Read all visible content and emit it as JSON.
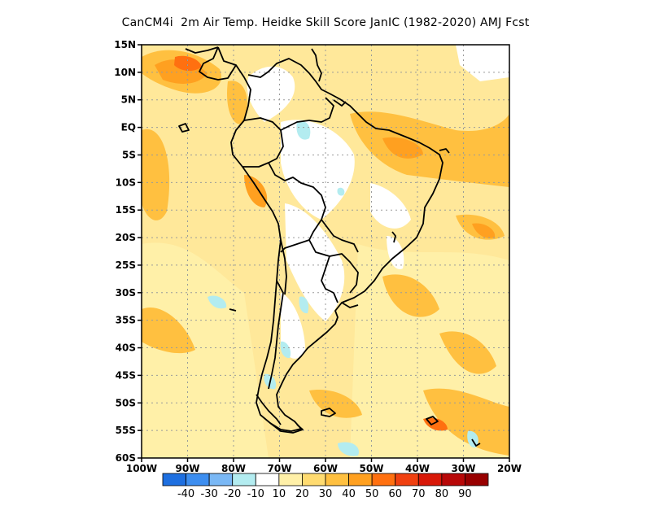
{
  "title": "CanCM4i  2m Air Temp. Heidke Skill Score JanIC (1982-2020) AMJ Fcst",
  "map": {
    "lon_range": [
      -100,
      -20
    ],
    "lat_range": [
      -60,
      15
    ],
    "lat_ticks": [
      "15N",
      "10N",
      "5N",
      "EQ",
      "5S",
      "10S",
      "15S",
      "20S",
      "25S",
      "30S",
      "35S",
      "40S",
      "45S",
      "50S",
      "55S",
      "60S"
    ],
    "lon_ticks": [
      "100W",
      "90W",
      "80W",
      "70W",
      "60W",
      "50W",
      "40W",
      "30W",
      "20W"
    ],
    "gridlines": true
  },
  "colorbar": {
    "bins": [
      {
        "color": "#1e6fe0"
      },
      {
        "color": "#3d8ef0"
      },
      {
        "color": "#7ab8f5"
      },
      {
        "color": "#b3ecf0"
      },
      {
        "color": "#ffffff"
      },
      {
        "color": "#fff0a8"
      },
      {
        "color": "#ffdb70"
      },
      {
        "color": "#ffc040"
      },
      {
        "color": "#ffa020"
      },
      {
        "color": "#ff7010"
      },
      {
        "color": "#f04010"
      },
      {
        "color": "#d81808"
      },
      {
        "color": "#b80808"
      },
      {
        "color": "#980000"
      }
    ],
    "labels": [
      "-40",
      "-30",
      "-20",
      "-10",
      "10",
      "20",
      "30",
      "40",
      "50",
      "60",
      "70",
      "80",
      "90"
    ]
  }
}
